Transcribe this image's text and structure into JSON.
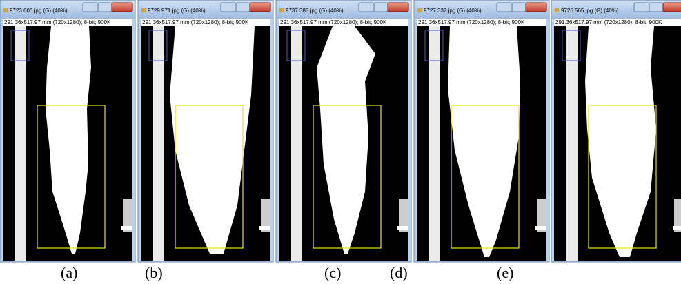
{
  "windows": [
    {
      "title": "9723 606.jpg (G) (40%)",
      "info": "291.36x517.97 mm (720x1280); 8-bit; 900K"
    },
    {
      "title": "9729 971.jpg (G) (40%)",
      "info": "291.36x517.97 mm (720x1280); 8-bit; 900K"
    },
    {
      "title": "9737 385.jpg (G) (40%)",
      "info": "291.36x517.97 mm (720x1280); 8-bit; 900K"
    },
    {
      "title": "9727 337.jpg (G) (40%)",
      "info": "291.36x517.97 mm (720x1280); 8-bit; 900K"
    },
    {
      "title": "9726 565.jpg (G) (40%)",
      "info": "291.36x517.97 mm (720x1280); 8-bit; 900K"
    }
  ],
  "labels": [
    "(a)",
    "(b)",
    "(c)",
    "(d)",
    "(e)"
  ]
}
